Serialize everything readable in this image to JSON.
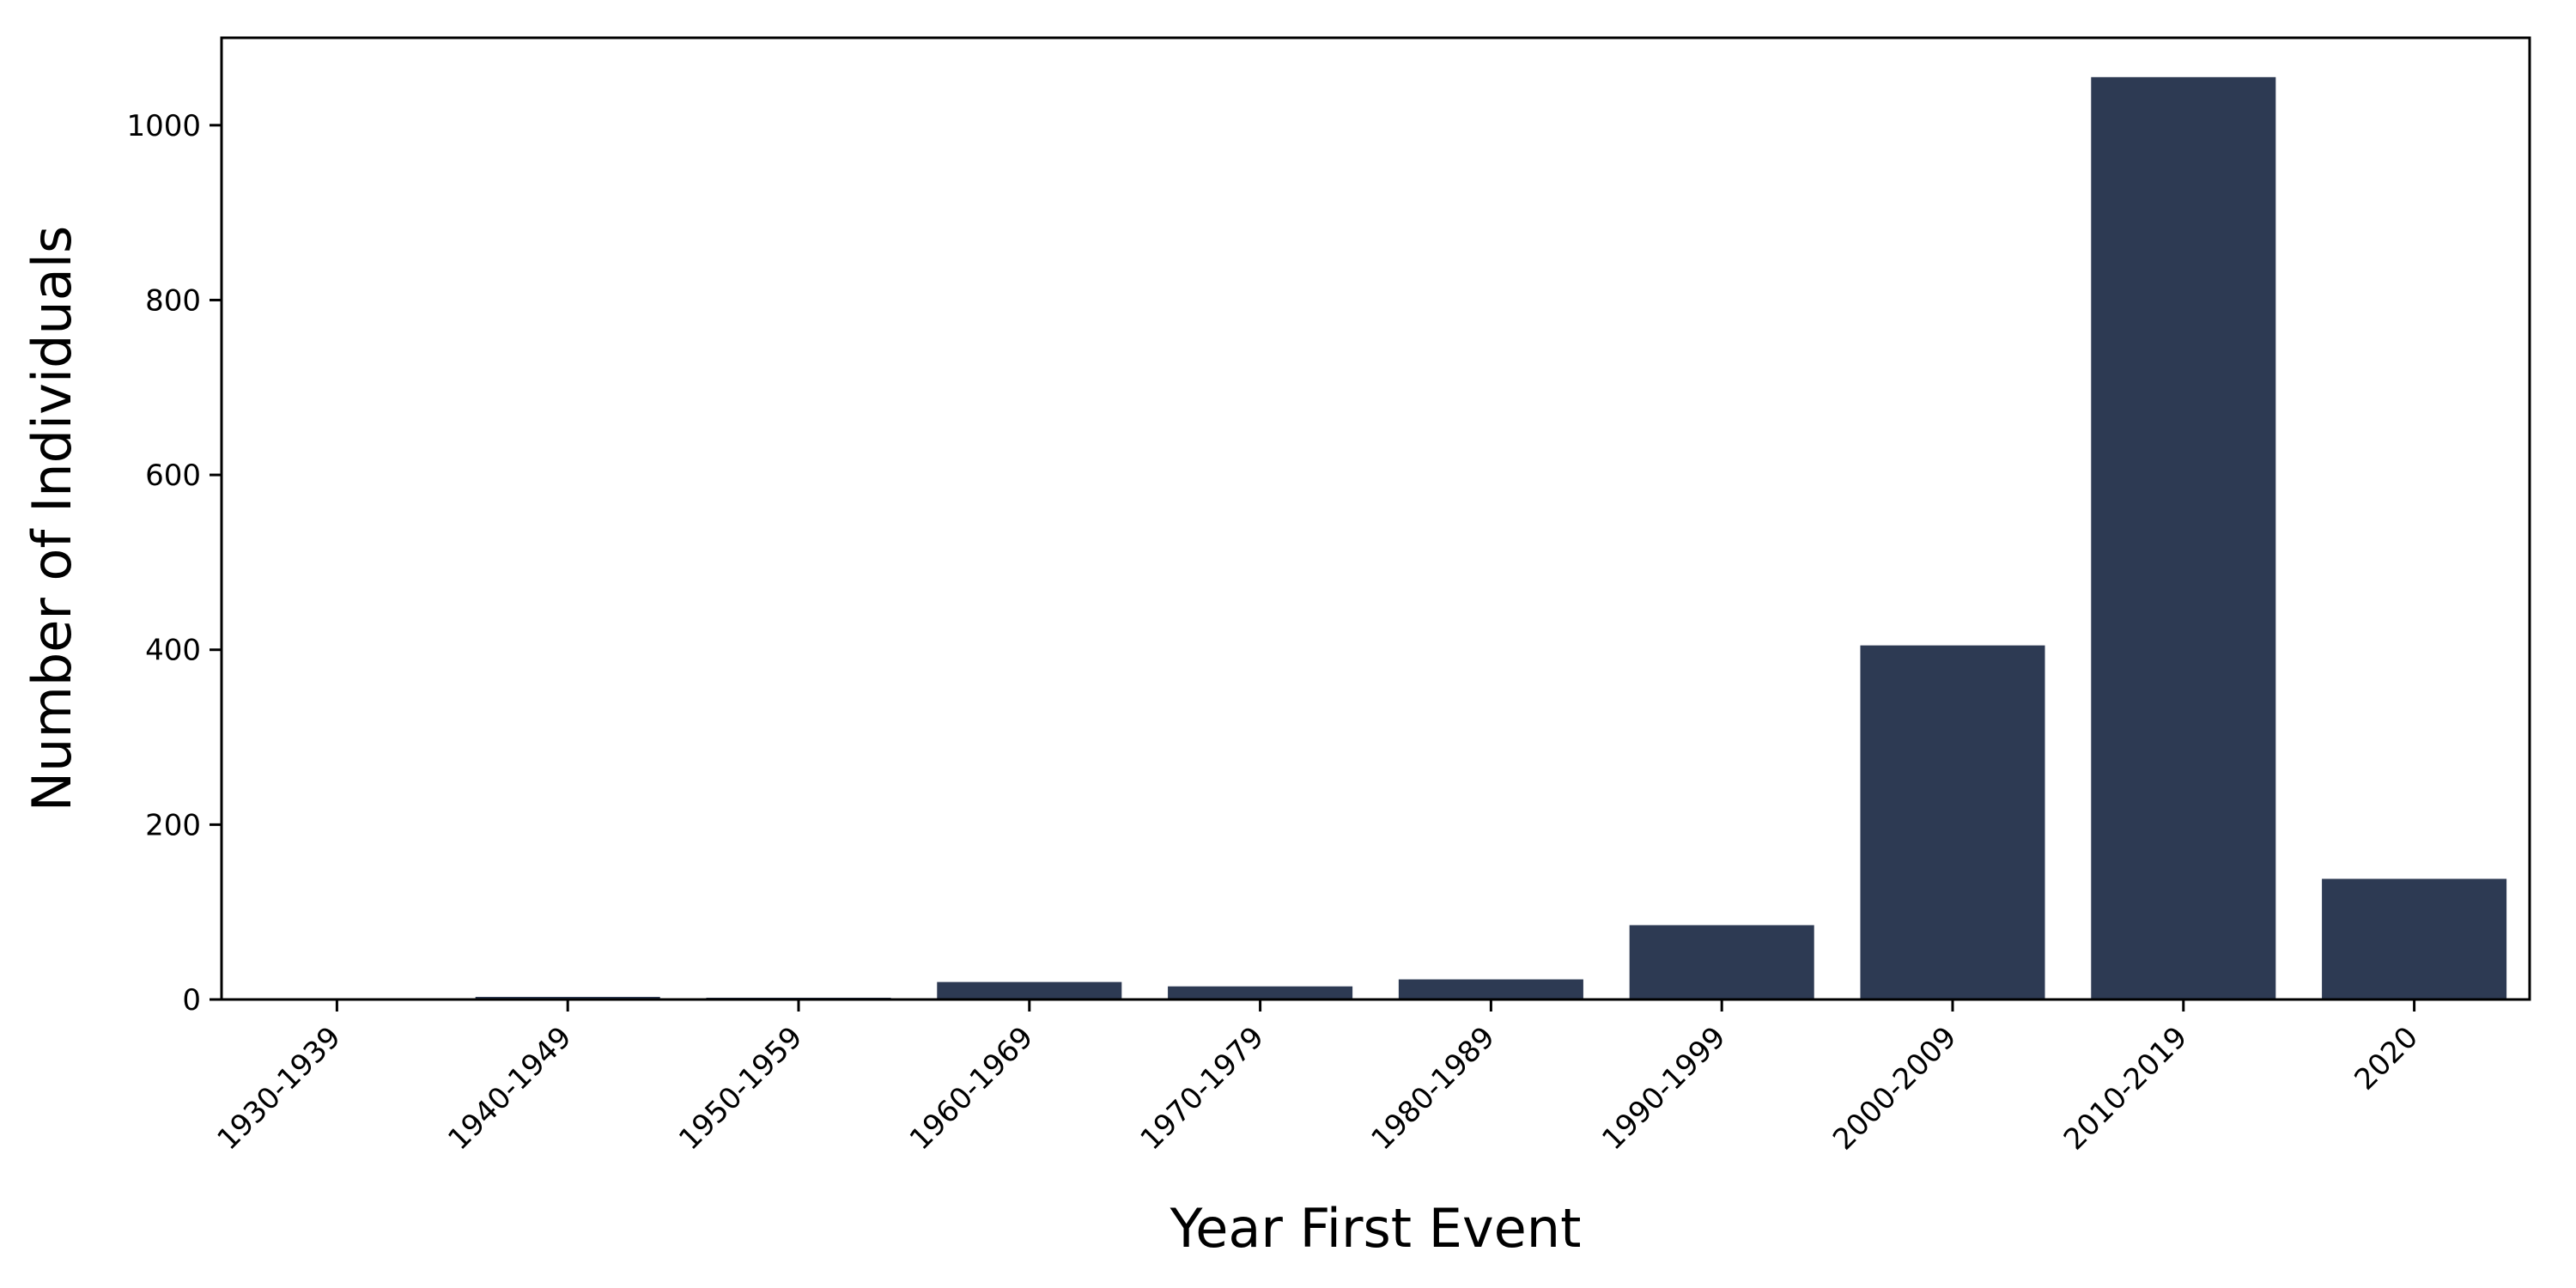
{
  "chart_data": {
    "type": "bar",
    "title": "",
    "xlabel": "Year First Event",
    "ylabel": "Number of Individuals",
    "categories": [
      "1930-1939",
      "1940-1949",
      "1950-1959",
      "1960-1969",
      "1970-1979",
      "1980-1989",
      "1990-1999",
      "2000-2009",
      "2010-2019",
      "2020"
    ],
    "values": [
      1,
      3,
      2,
      20,
      15,
      23,
      85,
      405,
      1055,
      138
    ],
    "ylim": [
      0,
      1100
    ],
    "yticks": [
      0,
      200,
      400,
      600,
      800,
      1000
    ],
    "grid": false,
    "legend": "none",
    "bar_color": "#2d3a53"
  }
}
